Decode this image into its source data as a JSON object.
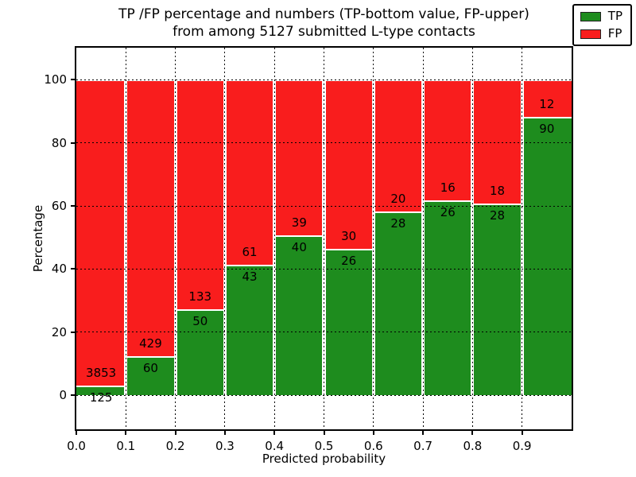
{
  "figure": {
    "title_line1": "TP /FP percentage and numbers (TP-bottom value, FP-upper)",
    "title_line2": "from among 5127 submitted L-type contacts"
  },
  "chart_data": {
    "type": "bar",
    "stacked": true,
    "normalized_to": 100,
    "title": "TP /FP percentage and numbers (TP-bottom value, FP-upper) from among 5127 submitted L-type contacts",
    "xlabel": "Predicted probability",
    "ylabel": "Percentage",
    "total_contacts": 5127,
    "categories": [
      "0.0-0.1",
      "0.1-0.2",
      "0.2-0.3",
      "0.3-0.4",
      "0.4-0.5",
      "0.5-0.6",
      "0.6-0.7",
      "0.7-0.8",
      "0.8-0.9",
      "0.9-1.0"
    ],
    "series": [
      {
        "name": "TP",
        "color": "#1e8c1e",
        "values": [
          125,
          60,
          50,
          43,
          40,
          26,
          28,
          26,
          28,
          90
        ]
      },
      {
        "name": "FP",
        "color": "#f91d1d",
        "values": [
          3853,
          429,
          133,
          61,
          39,
          30,
          20,
          16,
          18,
          12
        ]
      }
    ],
    "tp_percent_of_bin": [
      3.1,
      12.3,
      27.3,
      41.3,
      50.6,
      46.4,
      58.3,
      61.9,
      60.9,
      88.2
    ],
    "xticks": [
      "0.0",
      "0.1",
      "0.2",
      "0.3",
      "0.4",
      "0.5",
      "0.6",
      "0.7",
      "0.8",
      "0.9"
    ],
    "yticks": [
      0,
      20,
      40,
      60,
      80,
      100
    ],
    "xlim": [
      0,
      1
    ],
    "ylim": [
      -10.8,
      110.2
    ],
    "grid": "dotted black, both axes, drawn above bars",
    "bar_edge_color": "#ffffff",
    "legend": {
      "position": "upper right",
      "entries": [
        {
          "label": "TP",
          "color": "#1e8c1e"
        },
        {
          "label": "FP",
          "color": "#f91d1d"
        }
      ]
    }
  }
}
